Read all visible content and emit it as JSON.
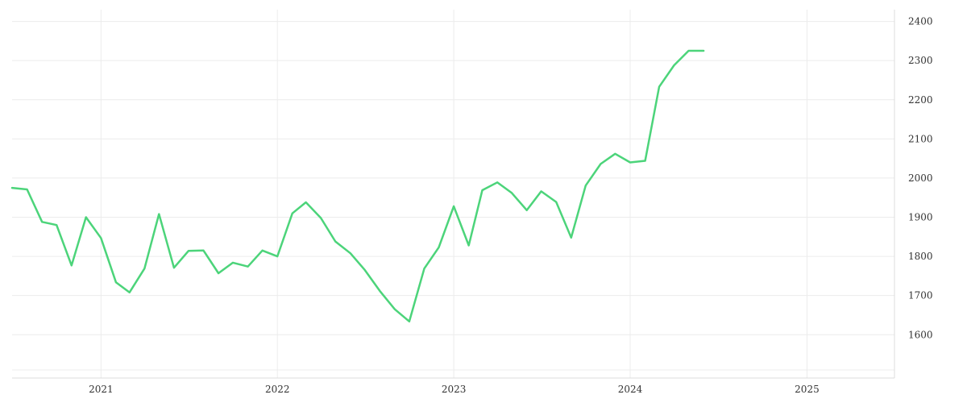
{
  "chart_data": {
    "type": "line",
    "title": "",
    "xlabel": "",
    "ylabel": "",
    "grid": true,
    "legend": "none",
    "y_axis_side": "right",
    "xlim": [
      "2020-07-01",
      "2025-07-01"
    ],
    "ylim": [
      1510,
      2430
    ],
    "x_ticks": [
      "2021",
      "2022",
      "2023",
      "2024",
      "2025"
    ],
    "y_ticks": [
      1600,
      1700,
      1800,
      1900,
      2000,
      2100,
      2200,
      2300,
      2400
    ],
    "colors": {
      "line": "#4cd47a",
      "grid": "#ececec"
    },
    "series": [
      {
        "points": [
          [
            "2020-07-01",
            1975
          ],
          [
            "2020-08-01",
            1971
          ],
          [
            "2020-09-01",
            1888
          ],
          [
            "2020-10-01",
            1880
          ],
          [
            "2020-11-01",
            1777
          ],
          [
            "2020-12-01",
            1900
          ],
          [
            "2021-01-01",
            1847
          ],
          [
            "2021-02-01",
            1734
          ],
          [
            "2021-03-01",
            1708
          ],
          [
            "2021-04-01",
            1769
          ],
          [
            "2021-05-01",
            1908
          ],
          [
            "2021-06-01",
            1771
          ],
          [
            "2021-07-01",
            1814
          ],
          [
            "2021-08-01",
            1815
          ],
          [
            "2021-09-01",
            1757
          ],
          [
            "2021-10-01",
            1784
          ],
          [
            "2021-11-01",
            1774
          ],
          [
            "2021-12-01",
            1815
          ],
          [
            "2022-01-01",
            1800
          ],
          [
            "2022-02-01",
            1910
          ],
          [
            "2022-03-01",
            1938
          ],
          [
            "2022-04-01",
            1898
          ],
          [
            "2022-05-01",
            1838
          ],
          [
            "2022-06-01",
            1808
          ],
          [
            "2022-07-01",
            1765
          ],
          [
            "2022-08-01",
            1712
          ],
          [
            "2022-09-01",
            1665
          ],
          [
            "2022-10-01",
            1634
          ],
          [
            "2022-11-01",
            1769
          ],
          [
            "2022-12-01",
            1823
          ],
          [
            "2023-01-01",
            1928
          ],
          [
            "2023-02-01",
            1828
          ],
          [
            "2023-03-01",
            1969
          ],
          [
            "2023-04-01",
            1989
          ],
          [
            "2023-05-01",
            1962
          ],
          [
            "2023-06-01",
            1918
          ],
          [
            "2023-07-01",
            1966
          ],
          [
            "2023-08-01",
            1939
          ],
          [
            "2023-09-01",
            1848
          ],
          [
            "2023-10-01",
            1981
          ],
          [
            "2023-11-01",
            2036
          ],
          [
            "2023-12-01",
            2062
          ],
          [
            "2024-01-01",
            2040
          ],
          [
            "2024-02-01",
            2044
          ],
          [
            "2024-03-01",
            2233
          ],
          [
            "2024-04-01",
            2288
          ],
          [
            "2024-05-01",
            2325
          ],
          [
            "2024-06-01",
            2325
          ]
        ]
      }
    ]
  }
}
